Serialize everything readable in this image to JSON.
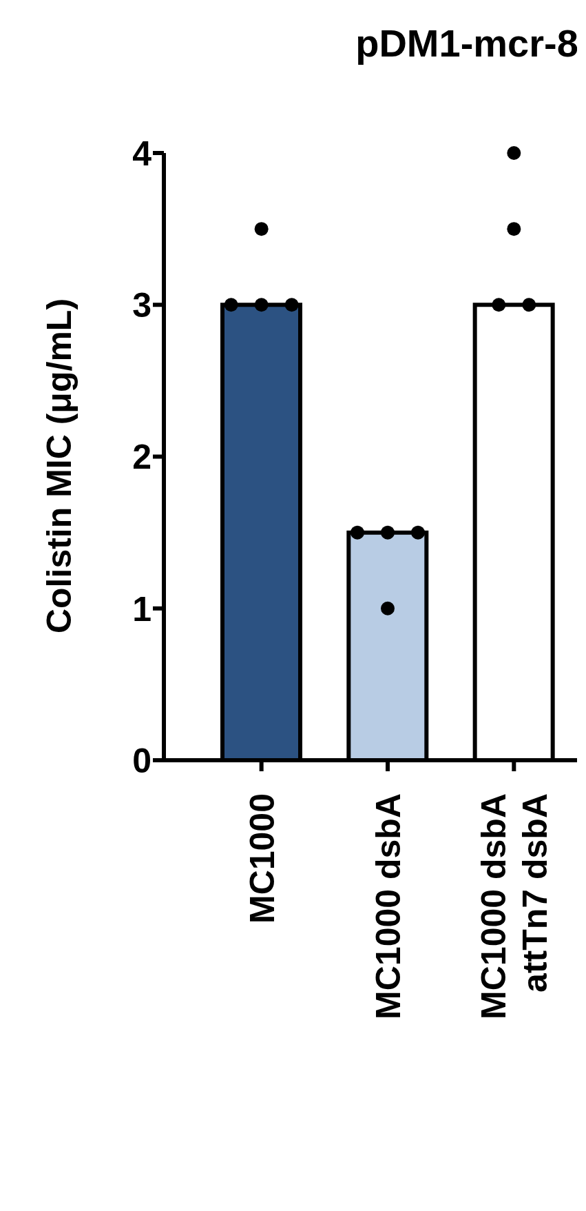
{
  "chart_data": {
    "type": "bar",
    "title": "pDM1-mcr-8",
    "ylabel": "Colistin MIC (μg/mL)",
    "categories": [
      "MC1000",
      "MC1000 dsbA",
      "MC1000 dsbA\nattTn7 dsbA"
    ],
    "ylim": [
      0,
      4
    ],
    "yticks": [
      0,
      1,
      2,
      3,
      4
    ],
    "grid": false,
    "marker": "circle",
    "series": [
      {
        "colors": [
          "#2c5282",
          "#b8cce4",
          "#ffffff"
        ],
        "values": [
          3,
          1.5,
          3
        ]
      },
      {
        "type": "scatter",
        "color": "#000000",
        "x": [
          "MC1000",
          "MC1000",
          "MC1000",
          "MC1000",
          "MC1000 dsbA",
          "MC1000 dsbA",
          "MC1000 dsbA",
          "MC1000 dsbA",
          "MC1000 dsbA\nattTn7 dsbA",
          "MC1000 dsbA\nattTn7 dsbA",
          "MC1000 dsbA\nattTn7 dsbA",
          "MC1000 dsbA\nattTn7 dsbA"
        ],
        "values": [
          3.5,
          3,
          3,
          3,
          1.5,
          1.5,
          1.5,
          1,
          4,
          3.5,
          3,
          3
        ]
      }
    ]
  }
}
